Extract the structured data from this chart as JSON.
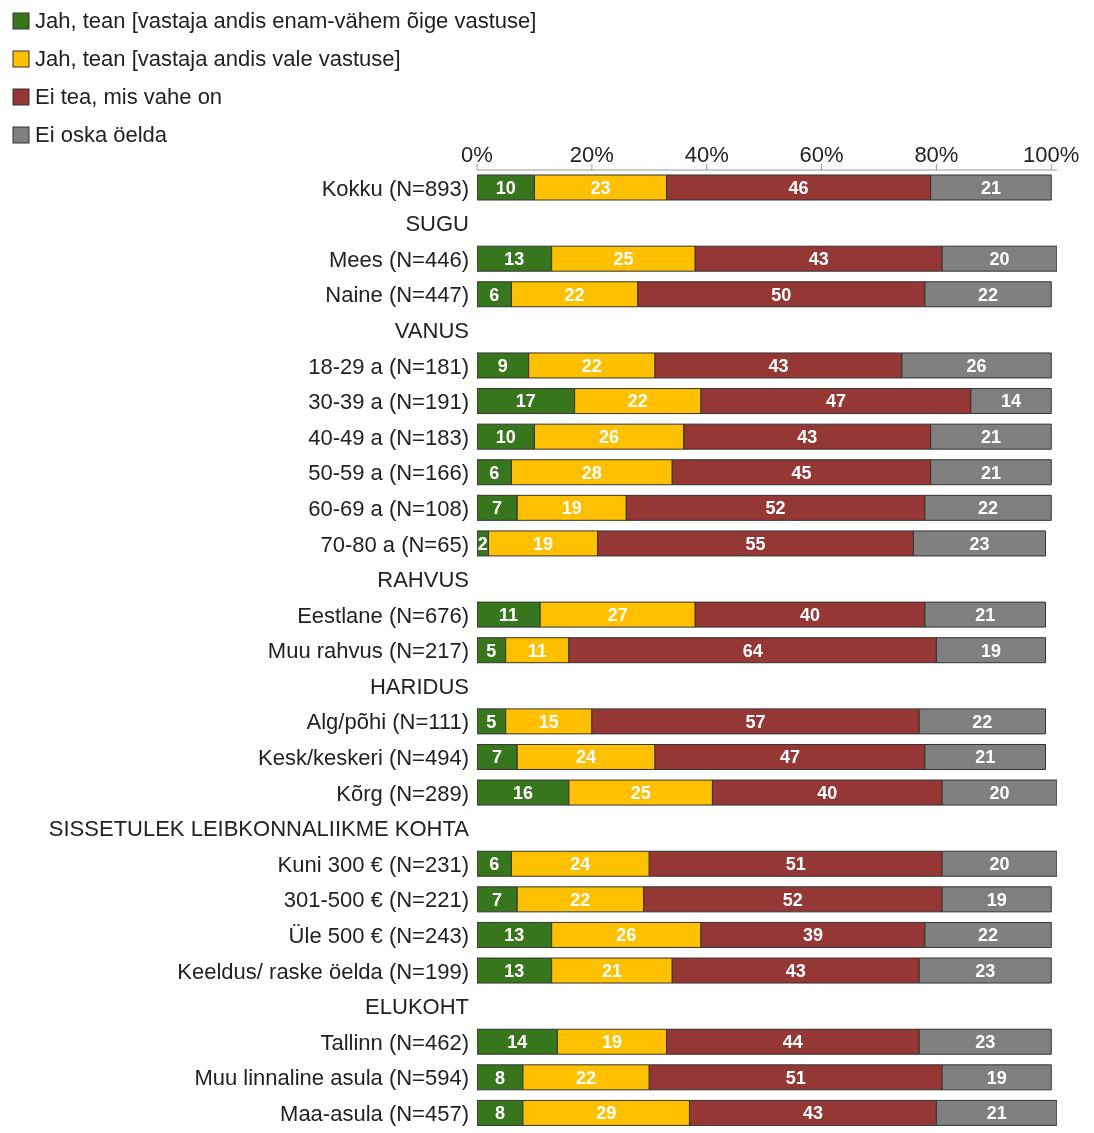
{
  "chart_data": {
    "type": "bar",
    "orientation": "horizontal",
    "stacked": true,
    "data_labels": true,
    "legend": "top left",
    "grid": false,
    "categories": [
      "Kokku (N=893)",
      "SUGU",
      "Mees (N=446)",
      "Naine (N=447)",
      "VANUS",
      "18-29 a (N=181)",
      "30-39 a (N=191)",
      "40-49 a (N=183)",
      "50-59 a (N=166)",
      "60-69 a (N=108)",
      "70-80 a (N=65)",
      "RAHVUS",
      "Eestlane (N=676)",
      "Muu rahvus (N=217)",
      "HARIDUS",
      "Alg/põhi (N=111)",
      "Kesk/keskeri (N=494)",
      "Kõrg (N=289)",
      "SISSETULEK LEIBKONNALIIKME KOHTA",
      "Kuni 300 € (N=231)",
      "301-500 € (N=221)",
      "Üle 500 € (N=243)",
      "Keeldus/ raske öelda (N=199)",
      "ELUKOHT",
      "Tallinn (N=462)",
      "Muu linnaline asula (N=594)",
      "Maa-asula (N=457)"
    ],
    "xlim": [
      0,
      101
    ],
    "xticks": [
      {
        "value": 0,
        "label": "0%"
      },
      {
        "value": 20,
        "label": "20%"
      },
      {
        "value": 40,
        "label": "40%"
      },
      {
        "value": 60,
        "label": "60%"
      },
      {
        "value": 80,
        "label": "80%"
      },
      {
        "value": 100,
        "label": "100%"
      }
    ],
    "series": [
      {
        "name": "Jah, tean [vastaja andis enam-vähem õige vastuse]",
        "color": "#38761d",
        "values": [
          10,
          null,
          13,
          6,
          null,
          9,
          17,
          10,
          6,
          7,
          2,
          null,
          11,
          5,
          null,
          5,
          7,
          16,
          null,
          6,
          7,
          13,
          13,
          null,
          14,
          8,
          8
        ]
      },
      {
        "name": "Jah, tean [vastaja andis vale vastuse]",
        "color": "#ffc000",
        "values": [
          23,
          null,
          25,
          22,
          null,
          22,
          22,
          26,
          28,
          19,
          19,
          null,
          27,
          11,
          null,
          15,
          24,
          25,
          null,
          24,
          22,
          26,
          21,
          null,
          19,
          22,
          29
        ]
      },
      {
        "name": "Ei tea, mis vahe on",
        "color": "#953735",
        "values": [
          46,
          null,
          43,
          50,
          null,
          43,
          47,
          43,
          45,
          52,
          55,
          null,
          40,
          64,
          null,
          57,
          47,
          40,
          null,
          51,
          52,
          39,
          43,
          null,
          44,
          51,
          43
        ]
      },
      {
        "name": "Ei oska öelda",
        "color": "#808080",
        "values": [
          21,
          null,
          20,
          22,
          null,
          26,
          14,
          21,
          21,
          22,
          23,
          null,
          21,
          19,
          null,
          22,
          21,
          20,
          null,
          20,
          19,
          22,
          23,
          null,
          23,
          19,
          21
        ]
      }
    ]
  }
}
